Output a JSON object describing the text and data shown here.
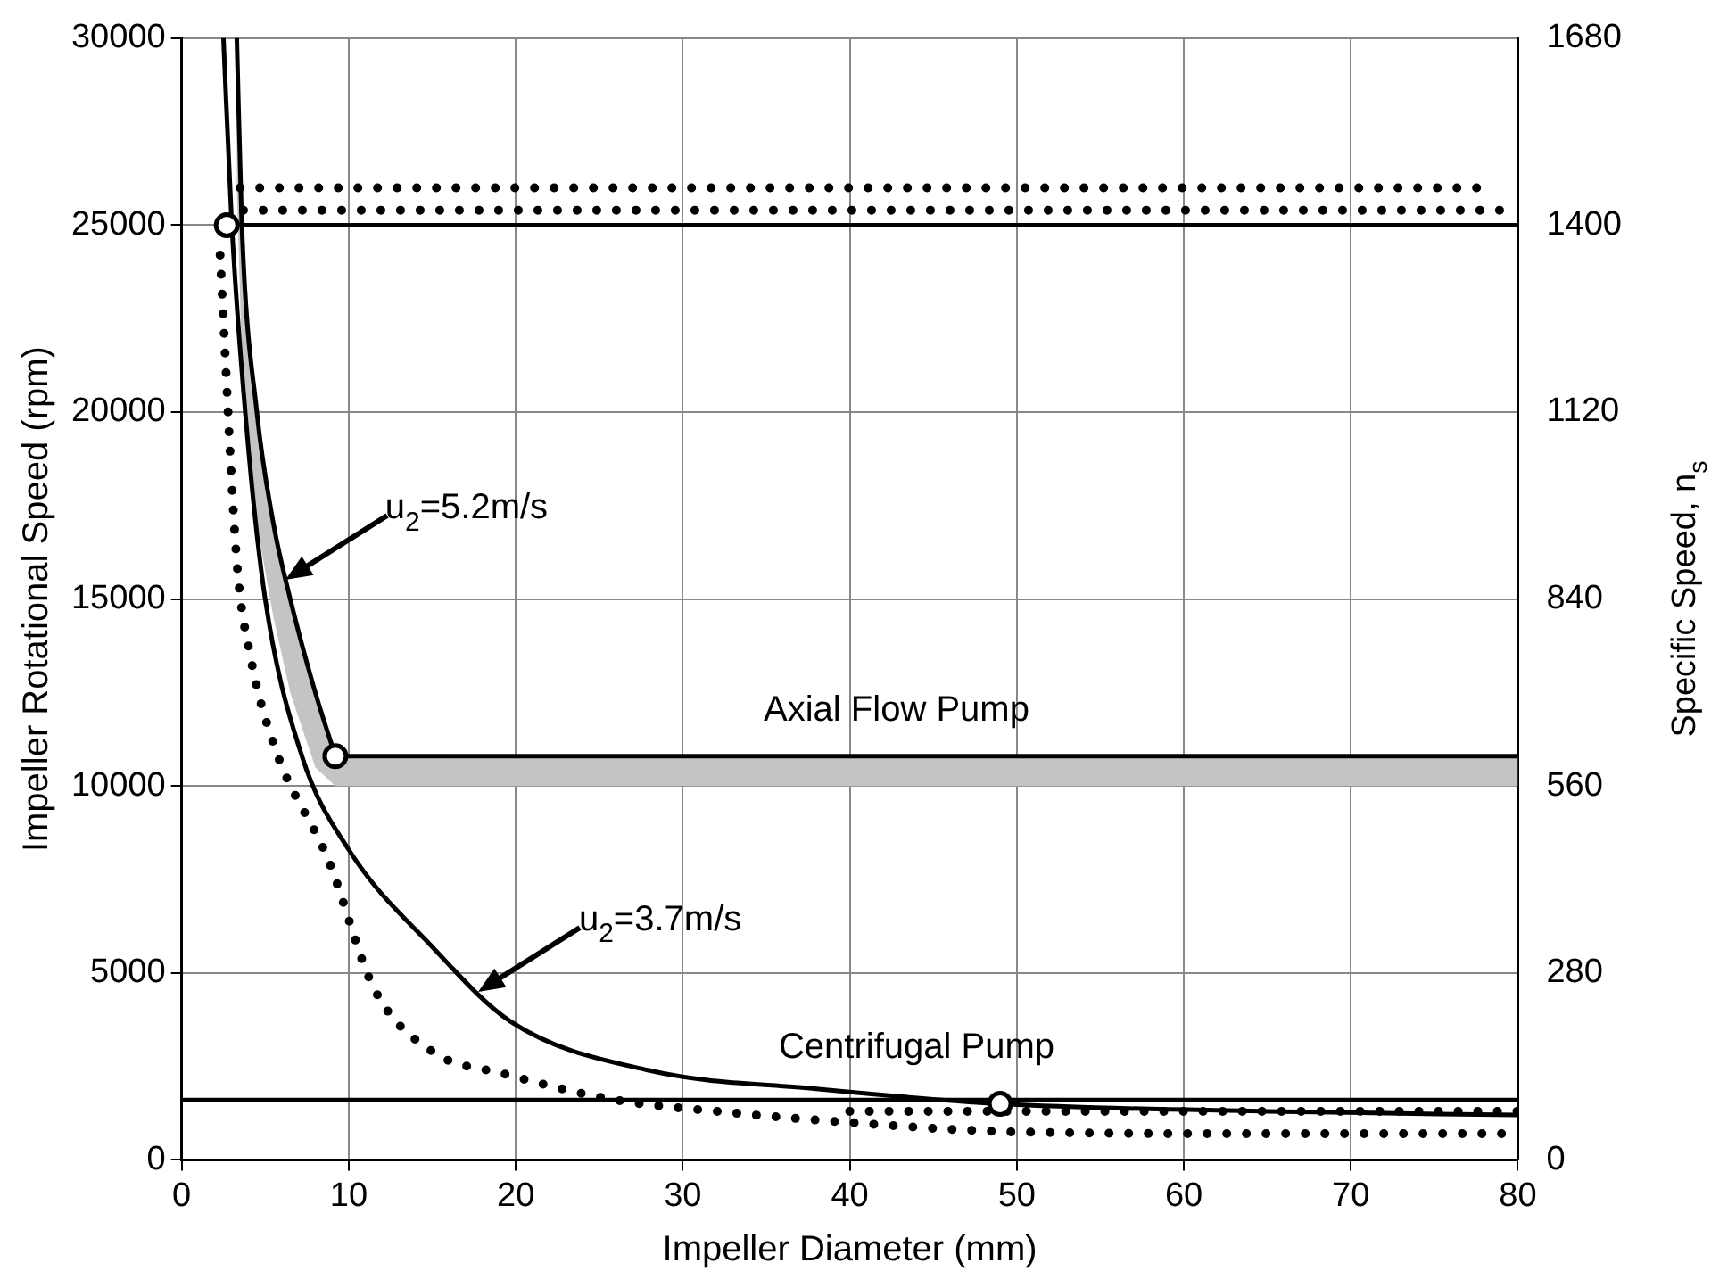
{
  "chart_data": {
    "type": "line",
    "xlabel": "Impeller Diameter (mm)",
    "ylabel": "Impeller Rotational Speed (rpm)",
    "y2label": "Specific Speed, n$_{s}$",
    "xlim": [
      0,
      80
    ],
    "xticks": [
      0,
      10,
      20,
      30,
      40,
      50,
      60,
      70,
      80
    ],
    "ylim": [
      0,
      30000
    ],
    "yticks": [
      0,
      5000,
      10000,
      15000,
      20000,
      25000,
      30000
    ],
    "y2lim": [
      0,
      1680
    ],
    "y2ticks": [
      0,
      280,
      560,
      840,
      1120,
      1400,
      1680
    ],
    "grid": true,
    "legend": false,
    "series": [
      {
        "color": "#000000",
        "line_style": "solid",
        "marker": "none",
        "x": [
          3.3,
          3.6,
          4.5,
          5.5,
          6.5,
          8,
          9.2
        ],
        "values": [
          30000,
          25000,
          20000,
          17000,
          15000,
          12500,
          10800
        ],
        "lower": [
          26000,
          21500,
          17000,
          14500,
          12500,
          10500,
          10000
        ],
        "upper": [
          30000,
          25000,
          20000,
          17000,
          15000,
          12500,
          10800
        ]
      },
      {
        "color": "#000000",
        "line_style": "solid",
        "marker": "none",
        "x": [
          9.2,
          80
        ],
        "values": [
          10800,
          10800
        ],
        "lower": [
          10000,
          10000
        ],
        "upper": [
          10800,
          10800
        ]
      },
      {
        "color": "#000000",
        "line_style": "solid",
        "marker": "none",
        "x": [
          2.7,
          80
        ],
        "values": [
          25000,
          25000
        ]
      },
      {
        "color": "#000000",
        "line_style": "solid",
        "marker": "none",
        "x": [
          0,
          80
        ],
        "values": [
          1600,
          1600
        ]
      },
      {
        "color": "#000000",
        "line_style": "solid",
        "marker": "none",
        "x": [
          2.5,
          3,
          4,
          5,
          7.2,
          10,
          15,
          19.7,
          27.9,
          38,
          49,
          65,
          80
        ],
        "values": [
          30000,
          25000,
          19000,
          15000,
          10800,
          8300,
          5700,
          3700,
          2400,
          1900,
          1500,
          1300,
          1200
        ]
      },
      {
        "color": "#000000",
        "line_style": "dotted",
        "marker": "none",
        "x": [
          3.5,
          78
        ],
        "values": [
          26000,
          26000
        ]
      },
      {
        "color": "#000000",
        "line_style": "dotted",
        "marker": "none",
        "x": [
          3.7,
          80
        ],
        "values": [
          25400,
          25400
        ]
      },
      {
        "color": "#000000",
        "line_style": "dotted",
        "marker": "none",
        "x": [
          2.3,
          3.3,
          4.1,
          5.6,
          8.8,
          11.5,
          15,
          19.3,
          26,
          32,
          40,
          49.8,
          65,
          80
        ],
        "values": [
          24200,
          16000,
          13500,
          11000,
          8000,
          4600,
          2900,
          2300,
          1600,
          1300,
          1000,
          750,
          700,
          700
        ]
      },
      {
        "color": "#000000",
        "line_style": "dotted",
        "marker": "none",
        "x": [
          40,
          80
        ],
        "values": [
          1300,
          1300
        ]
      },
      {
        "type": "scatter",
        "color": "#000000",
        "marker": "circle",
        "x": [
          2.7,
          9.2,
          49
        ],
        "values": [
          25000,
          10800,
          1500
        ]
      }
    ],
    "annotations": [
      "u$_{2}$=5.2m/s",
      "u$_{2}$=3.7m/s",
      "Axial Flow Pump",
      "Centrifugal Pump"
    ]
  }
}
